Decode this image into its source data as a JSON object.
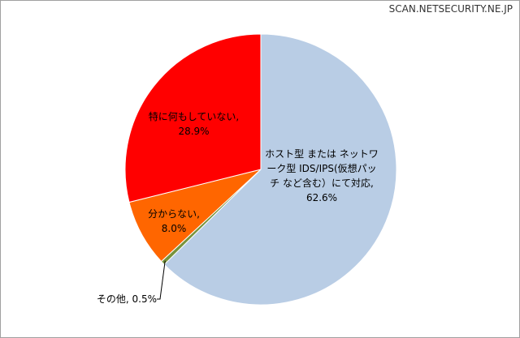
{
  "chart_data": {
    "type": "pie",
    "watermark": "SCAN.NETSECURITY.NE.JP",
    "values": [
      62.6,
      0.5,
      8.0,
      28.9
    ],
    "value_labels": [
      "ホスト型 または ネットワーク型 IDS/IPS(仮想パッチ など含む）にて対応, 62.6%",
      "その他, 0.5%",
      "分からない, 8.0%",
      "特に何もしていない, 28.9%"
    ],
    "colors": [
      "#b9cde5",
      "#77933c",
      "#ff6600",
      "#ff0000"
    ]
  }
}
